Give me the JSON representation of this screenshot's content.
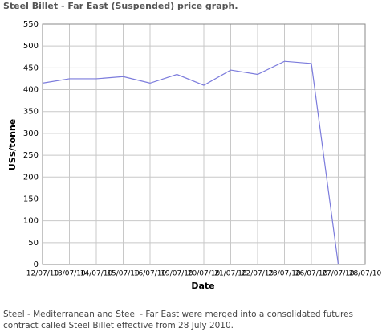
{
  "chart_data": {
    "type": "line",
    "title": "Steel Billet - Far East (Suspended) price graph.",
    "y_label": "US$/tonne",
    "x_label": "Date",
    "categories": [
      "12/07/10",
      "13/07/10",
      "14/07/10",
      "15/07/10",
      "16/07/10",
      "19/07/10",
      "20/07/10",
      "21/07/10",
      "22/07/10",
      "23/07/10",
      "26/07/10",
      "27/07/10",
      "28/07/10"
    ],
    "values": [
      415,
      425,
      425,
      430,
      415,
      435,
      410,
      445,
      435,
      465,
      460,
      0,
      null
    ],
    "color": "#7b7bdc",
    "ylim": [
      0,
      550
    ],
    "yticks": [
      0,
      50,
      100,
      150,
      200,
      250,
      300,
      350,
      400,
      450,
      500,
      550
    ],
    "grid": true,
    "note": "Steel - Mediterranean and Steel - Far East were merged into a consolidated futures contract called Steel Billet effective from 28 July 2010."
  }
}
